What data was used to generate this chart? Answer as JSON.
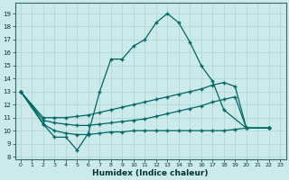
{
  "xlabel": "Humidex (Indice chaleur)",
  "bg_color": "#cceaea",
  "line_color": "#006666",
  "grid_color": "#b0d8d8",
  "xlim": [
    -0.5,
    23.5
  ],
  "ylim": [
    7.8,
    19.8
  ],
  "yticks": [
    8,
    9,
    10,
    11,
    12,
    13,
    14,
    15,
    16,
    17,
    18,
    19
  ],
  "xticks": [
    0,
    1,
    2,
    3,
    4,
    5,
    6,
    7,
    8,
    9,
    10,
    11,
    12,
    13,
    14,
    15,
    16,
    17,
    18,
    19,
    20,
    21,
    22,
    23
  ],
  "line1_x": [
    0,
    1,
    2,
    3,
    4,
    5,
    6,
    7,
    8,
    9,
    10,
    11,
    12,
    13,
    14,
    15,
    16,
    17,
    18,
    20,
    22
  ],
  "line1_y": [
    13,
    11.9,
    10.5,
    9.5,
    9.5,
    8.5,
    9.8,
    13.0,
    15.5,
    15.5,
    16.5,
    17.0,
    18.3,
    19.0,
    18.3,
    16.8,
    15.0,
    13.8,
    11.6,
    10.2,
    10.2
  ],
  "line2_x": [
    0,
    2,
    3,
    4,
    5,
    6,
    7,
    8,
    9,
    10,
    11,
    12,
    13,
    14,
    15,
    16,
    17,
    18,
    19,
    20,
    22
  ],
  "line2_y": [
    13,
    11.0,
    11.0,
    11.0,
    11.1,
    11.2,
    11.4,
    11.6,
    11.8,
    12.0,
    12.2,
    12.4,
    12.6,
    12.8,
    13.0,
    13.2,
    13.5,
    13.7,
    13.4,
    10.2,
    10.2
  ],
  "line3_x": [
    0,
    2,
    3,
    4,
    5,
    6,
    7,
    8,
    9,
    10,
    11,
    12,
    13,
    14,
    15,
    16,
    17,
    18,
    19,
    20,
    22
  ],
  "line3_y": [
    13,
    10.8,
    10.6,
    10.5,
    10.4,
    10.4,
    10.5,
    10.6,
    10.7,
    10.8,
    10.9,
    11.1,
    11.3,
    11.5,
    11.7,
    11.9,
    12.2,
    12.4,
    12.6,
    10.2,
    10.2
  ],
  "line4_x": [
    0,
    2,
    3,
    4,
    5,
    6,
    7,
    8,
    9,
    10,
    11,
    12,
    13,
    14,
    15,
    16,
    17,
    18,
    19,
    20,
    22
  ],
  "line4_y": [
    13,
    10.5,
    10.0,
    9.8,
    9.7,
    9.7,
    9.8,
    9.9,
    9.9,
    10.0,
    10.0,
    10.0,
    10.0,
    10.0,
    10.0,
    10.0,
    10.0,
    10.0,
    10.1,
    10.2,
    10.2
  ]
}
